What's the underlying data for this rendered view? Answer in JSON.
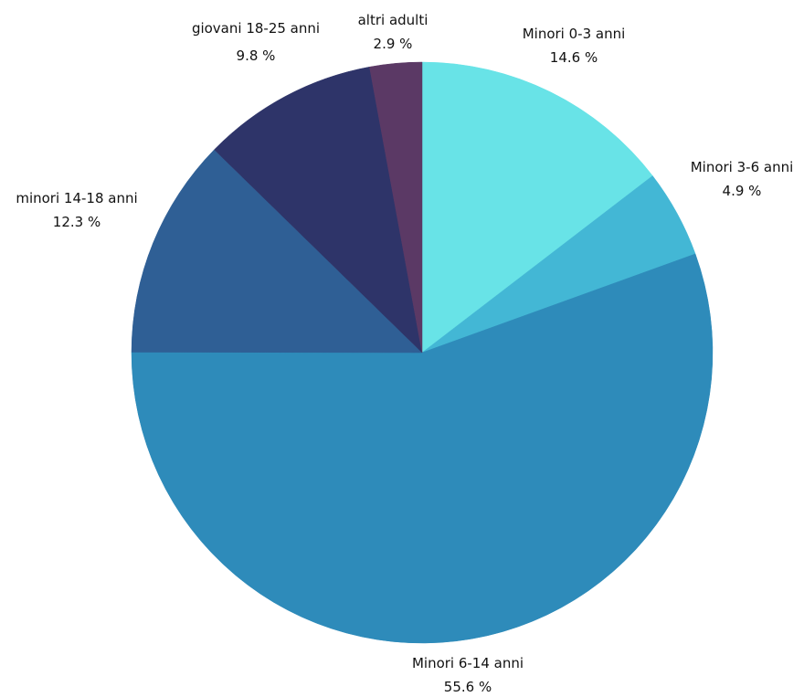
{
  "chart_data": {
    "type": "pie",
    "title": "",
    "start": "top",
    "direction": "clockwise",
    "legend": "none",
    "slices": [
      {
        "label": "Minori 0-3 anni",
        "value": 14.6,
        "value_label": "14.6 %",
        "color": "#68e3e7"
      },
      {
        "label": "Minori 3-6 anni",
        "value": 4.9,
        "value_label": "4.9 %",
        "color": "#43b7d5"
      },
      {
        "label": "Minori 6-14 anni",
        "value": 55.6,
        "value_label": "55.6 %",
        "color": "#2e8bba"
      },
      {
        "label": "minori 14-18 anni",
        "value": 12.3,
        "value_label": "12.3 %",
        "color": "#2f5f95"
      },
      {
        "label": "giovani 18-25 anni",
        "value": 9.8,
        "value_label": "9.8 %",
        "color": "#2e3469"
      },
      {
        "label": "altri adulti",
        "value": 2.9,
        "value_label": "2.9 %",
        "color": "#5b3965"
      }
    ]
  }
}
